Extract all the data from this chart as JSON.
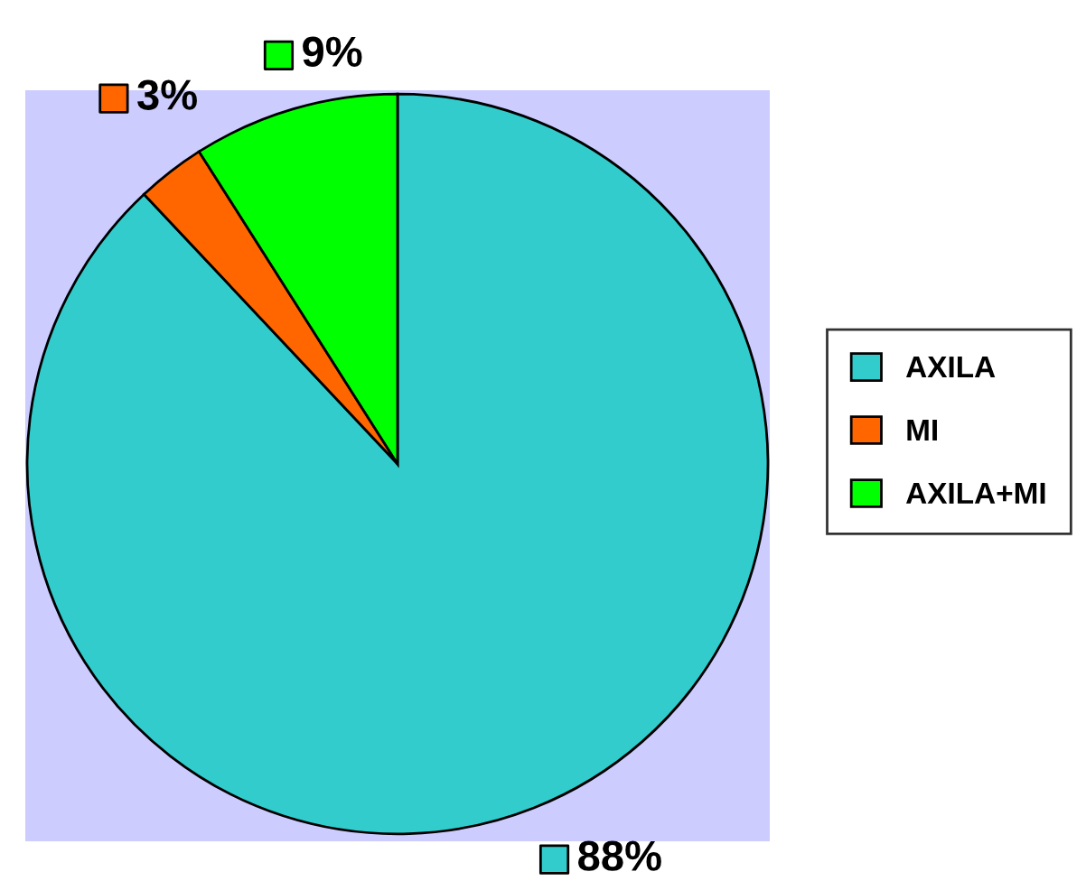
{
  "chart_data": {
    "type": "pie",
    "categories": [
      "AXILA",
      "MI",
      "AXILA+MI"
    ],
    "values": [
      88,
      3,
      9
    ],
    "colors": [
      "#33cccc",
      "#ff6600",
      "#00ff00"
    ],
    "value_labels": [
      "88%",
      "3%",
      "9%"
    ],
    "legend": "right"
  }
}
